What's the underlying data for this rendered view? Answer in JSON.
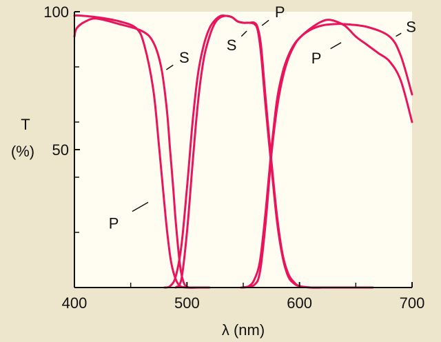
{
  "chart_data": {
    "type": "line",
    "xlabel": "λ (nm)",
    "ylabel_line1": "T",
    "ylabel_line2": "(%)",
    "xlim": [
      400,
      700
    ],
    "ylim": [
      0,
      100
    ],
    "grid": false,
    "x_ticks": [
      {
        "value": 400,
        "label": "400"
      },
      {
        "value": 500,
        "label": "500"
      },
      {
        "value": 600,
        "label": "600"
      },
      {
        "value": 700,
        "label": "700"
      }
    ],
    "y_ticks": [
      {
        "value": 100,
        "label": "100"
      },
      {
        "value": 50,
        "label": "50"
      }
    ],
    "y_minor_ticks": [
      20,
      40,
      60,
      80
    ],
    "x_minor_ticks": [
      450,
      550,
      650
    ],
    "line_color": "#e8145c",
    "series": [
      {
        "name": "P",
        "x": [
          400,
          405,
          420,
          440,
          455,
          462,
          470,
          475,
          480,
          483,
          486,
          490,
          494,
          500,
          510
        ],
        "y": [
          98.6,
          98.6,
          98,
          96.5,
          94,
          88,
          72,
          52,
          30,
          18,
          9,
          3,
          0.5,
          0,
          0
        ]
      },
      {
        "name": "S",
        "x": [
          400,
          402,
          410,
          420,
          440,
          460,
          470,
          477,
          482,
          485,
          488,
          490,
          493,
          495,
          498,
          502,
          510,
          520
        ],
        "y": [
          91,
          94,
          96.5,
          97.5,
          95.5,
          93,
          89,
          80,
          65,
          50,
          35,
          24,
          11,
          5,
          1,
          0,
          0,
          0
        ]
      },
      {
        "name": "P",
        "x": [
          480,
          485,
          490,
          495,
          500,
          505,
          510,
          515,
          520,
          525,
          530,
          535,
          540,
          545,
          550,
          555,
          560,
          563,
          566,
          570,
          575,
          580,
          585,
          590,
          595,
          600,
          610,
          620,
          630,
          650,
          665
        ],
        "y": [
          0,
          0.5,
          4,
          15,
          36,
          60,
          78,
          88,
          94,
          97,
          98.5,
          98.5,
          98,
          96.5,
          96,
          96,
          95.5,
          93,
          84,
          65,
          44,
          24,
          11,
          4,
          1.5,
          0.5,
          0,
          0,
          0,
          0,
          0
        ]
      },
      {
        "name": "S",
        "x": [
          490,
          495,
          500,
          505,
          510,
          515,
          520,
          525,
          530,
          535,
          540,
          545,
          550,
          555,
          560,
          563,
          566,
          570,
          575,
          580,
          585,
          590,
          595,
          600,
          610,
          620,
          630,
          650,
          665
        ],
        "y": [
          0,
          3,
          20,
          45,
          68,
          83,
          91,
          96,
          98,
          98.5,
          98,
          96.5,
          96,
          96,
          96,
          94,
          87,
          68,
          46,
          26,
          12,
          5,
          2,
          0.5,
          0,
          0,
          0,
          0,
          0
        ]
      },
      {
        "name": "P",
        "x": [
          548,
          555,
          560,
          565,
          570,
          575,
          580,
          585,
          590,
          595,
          600,
          610,
          620,
          628,
          640,
          650,
          660,
          670,
          680,
          690,
          700
        ],
        "y": [
          0,
          0.5,
          3,
          10,
          28,
          50,
          68,
          78,
          84,
          88,
          90.5,
          94,
          96.5,
          97,
          95,
          91,
          88,
          85,
          82,
          75,
          60
        ]
      },
      {
        "name": "S",
        "x": [
          550,
          560,
          565,
          570,
          575,
          580,
          585,
          590,
          595,
          600,
          610,
          620,
          630,
          640,
          660,
          680,
          690,
          700
        ],
        "y": [
          0,
          1,
          6,
          24,
          48,
          65,
          76,
          83,
          87.5,
          90.5,
          93.5,
          95,
          95.5,
          95.5,
          94.5,
          91,
          84,
          70
        ]
      }
    ],
    "annotations": [
      {
        "text": "P",
        "series_index": 0,
        "at_x": 479
      },
      {
        "text": "S",
        "series_index": 1,
        "at_x": 478
      },
      {
        "text": "P",
        "series_index": 2,
        "at_x": 563
      },
      {
        "text": "S",
        "series_index": 3,
        "at_x": 558
      },
      {
        "text": "P",
        "series_index": 4,
        "at_x": 648
      },
      {
        "text": "S",
        "series_index": 5,
        "at_x": 682
      }
    ]
  }
}
